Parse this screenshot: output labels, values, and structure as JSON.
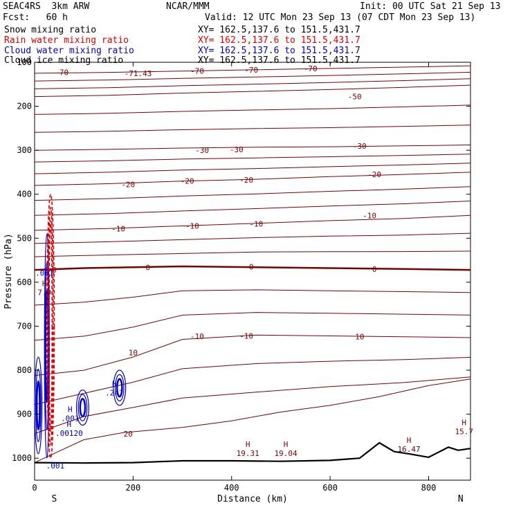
{
  "header": {
    "model": "SEAC4RS  3km ARW",
    "forecast": "Fcst:   60 h",
    "source": "NCAR/MMM",
    "init": "Init: 00 UTC Sat 21 Sep 13",
    "valid": "Valid: 12 UTC Mon 23 Sep 13 (07 CDT Mon 23 Sep 13)",
    "fields": [
      {
        "name": "Snow mixing ratio",
        "xy": "XY= 162.5,137.6 to 151.5,431.7",
        "color": "#000000"
      },
      {
        "name": "Rain water mixing ratio",
        "xy": "XY= 162.5,137.6 to 151.5,431.7",
        "color": "#dd0000"
      },
      {
        "name": "Cloud water mixing ratio",
        "xy": "XY= 162.5,137.6 to 151.5,431.7",
        "color": "#0000cc"
      },
      {
        "name": "Cloud ice mixing ratio",
        "xy": "XY= 162.5,137.6 to 151.5,431.7",
        "color": "#000000"
      }
    ]
  },
  "chart_data": {
    "type": "cross-section contour",
    "xlabel": "Distance (km)",
    "ylabel": "Pressure (hPa)",
    "xlim": [
      0,
      885
    ],
    "ylim": [
      1050,
      100
    ],
    "x_ticks": [
      0,
      200,
      400,
      600,
      800
    ],
    "y_ticks": [
      200,
      300,
      400,
      500,
      600,
      700,
      800,
      900,
      1000
    ],
    "y_top_label": "100",
    "endpoint_left": "S",
    "endpoint_right": "N",
    "temperature_isotherms_C": [
      {
        "level": -70,
        "label": "-70",
        "points": [
          [
            0,
            125
          ],
          [
            150,
            123
          ],
          [
            300,
            120
          ],
          [
            450,
            117
          ],
          [
            600,
            114
          ],
          [
            750,
            111
          ],
          [
            885,
            108
          ]
        ]
      },
      {
        "level": -50,
        "label": "-50",
        "points": [
          [
            0,
            178
          ],
          [
            150,
            175
          ],
          [
            300,
            170
          ],
          [
            450,
            166
          ],
          [
            600,
            162
          ],
          [
            750,
            157
          ],
          [
            885,
            152
          ]
        ]
      },
      {
        "level": -30,
        "label": "-30",
        "points": [
          [
            0,
            300
          ],
          [
            150,
            298
          ],
          [
            300,
            295
          ],
          [
            450,
            293
          ],
          [
            600,
            292
          ],
          [
            750,
            290
          ],
          [
            885,
            288
          ]
        ]
      },
      {
        "level": -20,
        "label": "-20",
        "points": [
          [
            0,
            380
          ],
          [
            150,
            376
          ],
          [
            300,
            370
          ],
          [
            450,
            366
          ],
          [
            600,
            360
          ],
          [
            750,
            355
          ],
          [
            885,
            350
          ]
        ]
      },
      {
        "level": -10,
        "label": "-10",
        "points": [
          [
            0,
            482
          ],
          [
            150,
            478
          ],
          [
            300,
            472
          ],
          [
            450,
            466
          ],
          [
            600,
            460
          ],
          [
            750,
            455
          ],
          [
            885,
            448
          ]
        ]
      },
      {
        "level": 0,
        "label": "0",
        "points": [
          [
            0,
            572
          ],
          [
            100,
            568
          ],
          [
            200,
            566
          ],
          [
            300,
            564
          ],
          [
            450,
            566
          ],
          [
            600,
            568
          ],
          [
            750,
            570
          ],
          [
            885,
            572
          ]
        ]
      },
      {
        "level": 10,
        "label": "10",
        "points": [
          [
            0,
            812
          ],
          [
            100,
            800
          ],
          [
            200,
            770
          ],
          [
            300,
            730
          ],
          [
            450,
            720
          ],
          [
            600,
            722
          ],
          [
            750,
            724
          ],
          [
            885,
            726
          ]
        ]
      },
      {
        "level": 20,
        "label": "20",
        "points": [
          [
            0,
            1010
          ],
          [
            100,
            958
          ],
          [
            180,
            942
          ],
          [
            300,
            930
          ],
          [
            400,
            915
          ],
          [
            500,
            895
          ],
          [
            600,
            880
          ],
          [
            700,
            860
          ],
          [
            800,
            835
          ],
          [
            885,
            820
          ]
        ]
      }
    ],
    "isotherm_labels": [
      "-71.43",
      "-70",
      "-70",
      "-70",
      "-70",
      "-50",
      "-30",
      "-30",
      "-30",
      "-20",
      "-20",
      "-20",
      "-20",
      "-10",
      "-10",
      "-10",
      "-10",
      "0",
      "0",
      "0",
      "0",
      "-10",
      "-10",
      "10",
      "10",
      "20"
    ],
    "extrema_labels": [
      {
        "kind": "H",
        "value": "19.31",
        "x": 433,
        "p": 978
      },
      {
        "kind": "H",
        "value": "19.04",
        "x": 510,
        "p": 978
      },
      {
        "kind": "H",
        "value": "16.47",
        "x": 760,
        "p": 968
      },
      {
        "kind": "H",
        "value": "15.7",
        "x": 872,
        "p": 928
      },
      {
        "kind": "H",
        "value": ".247",
        "x": 162,
        "p": 840
      },
      {
        "kind": "H",
        "value": ".00120",
        "x": 70,
        "p": 932
      },
      {
        "kind": "H",
        "value": ".001",
        "x": 72,
        "p": 898
      },
      {
        "kind": "",
        "value": ".001",
        "x": 42,
        "p": 1006
      },
      {
        "kind": "",
        "value": ".001",
        "x": 20,
        "p": 568
      },
      {
        "kind": "H",
        "value": "7.9",
        "x": 20,
        "p": 612
      }
    ],
    "terrain_profile": [
      [
        0,
        1010
      ],
      [
        100,
        1011
      ],
      [
        200,
        1010
      ],
      [
        300,
        1006
      ],
      [
        400,
        1006
      ],
      [
        500,
        1007
      ],
      [
        600,
        1005
      ],
      [
        660,
        1000
      ],
      [
        700,
        965
      ],
      [
        730,
        985
      ],
      [
        760,
        990
      ],
      [
        800,
        998
      ],
      [
        840,
        975
      ],
      [
        860,
        982
      ],
      [
        885,
        978
      ]
    ],
    "cloud_water_contours": [
      {
        "x": [
          20,
          30
        ],
        "p": [
          490,
          1000
        ]
      },
      {
        "x": [
          0,
          15
        ],
        "p": [
          770,
          990
        ]
      },
      {
        "x": [
          85,
          110
        ],
        "p": [
          845,
          925
        ]
      },
      {
        "x": [
          160,
          185
        ],
        "p": [
          800,
          880
        ]
      }
    ],
    "rain_water_contours": [
      {
        "x": [
          25,
          40
        ],
        "p": [
          400,
          1000
        ]
      }
    ]
  }
}
